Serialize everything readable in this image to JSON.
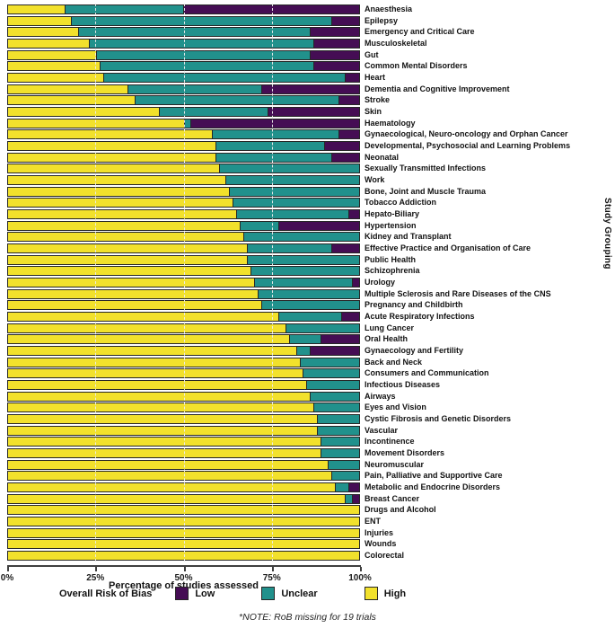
{
  "chart_data": {
    "type": "bar",
    "orientation": "horizontal",
    "stacked": true,
    "xlabel": "Percentage of studies assessed",
    "ylabel": "Study Grouping",
    "xlim": [
      0,
      100
    ],
    "x_ticks": [
      "0%",
      "25%",
      "50%",
      "75%",
      "100%"
    ],
    "grid": "dashed vertical at 25/50/75",
    "legend": {
      "title": "Overall Risk of Bias",
      "position": "bottom",
      "entries": [
        {
          "label": "Low",
          "color": "#450d54"
        },
        {
          "label": "Unclear",
          "color": "#21918c"
        },
        {
          "label": "High",
          "color": "#f2e12c"
        }
      ]
    },
    "note": "*NOTE: RoB missing for 19 trials",
    "segment_order": [
      "High",
      "Unclear",
      "Low"
    ],
    "rows": [
      {
        "label": "Anaesthesia",
        "high": 16,
        "unclear": 34,
        "low": 50
      },
      {
        "label": "Epilepsy",
        "high": 18,
        "unclear": 74,
        "low": 8
      },
      {
        "label": "Emergency and Critical Care",
        "high": 20,
        "unclear": 66,
        "low": 14
      },
      {
        "label": "Musculoskeletal",
        "high": 23,
        "unclear": 64,
        "low": 13
      },
      {
        "label": "Gut",
        "high": 25,
        "unclear": 61,
        "low": 14
      },
      {
        "label": "Common Mental Disorders",
        "high": 26,
        "unclear": 61,
        "low": 13
      },
      {
        "label": "Heart",
        "high": 27,
        "unclear": 69,
        "low": 4
      },
      {
        "label": "Dementia and Cognitive Improvement",
        "high": 34,
        "unclear": 38,
        "low": 28
      },
      {
        "label": "Stroke",
        "high": 36,
        "unclear": 58,
        "low": 6
      },
      {
        "label": "Skin",
        "high": 43,
        "unclear": 31,
        "low": 26
      },
      {
        "label": "Haematology",
        "high": 50,
        "unclear": 2,
        "low": 48
      },
      {
        "label": "Gynaecological, Neuro-oncology and Orphan Cancer",
        "high": 58,
        "unclear": 36,
        "low": 6
      },
      {
        "label": "Developmental, Psychosocial and Learning Problems",
        "high": 59,
        "unclear": 31,
        "low": 10
      },
      {
        "label": "Neonatal",
        "high": 59,
        "unclear": 33,
        "low": 8
      },
      {
        "label": "Sexually Transmitted Infections",
        "high": 60,
        "unclear": 40,
        "low": 0
      },
      {
        "label": "Work",
        "high": 62,
        "unclear": 38,
        "low": 0
      },
      {
        "label": "Bone, Joint and Muscle Trauma",
        "high": 63,
        "unclear": 37,
        "low": 0
      },
      {
        "label": "Tobacco Addiction",
        "high": 64,
        "unclear": 36,
        "low": 0
      },
      {
        "label": "Hepato-Biliary",
        "high": 65,
        "unclear": 32,
        "low": 3
      },
      {
        "label": "Hypertension",
        "high": 66,
        "unclear": 11,
        "low": 23
      },
      {
        "label": "Kidney and Transplant",
        "high": 67,
        "unclear": 33,
        "low": 0
      },
      {
        "label": "Effective Practice and Organisation of Care",
        "high": 68,
        "unclear": 24,
        "low": 8
      },
      {
        "label": "Public Health",
        "high": 68,
        "unclear": 32,
        "low": 0
      },
      {
        "label": "Schizophrenia",
        "high": 69,
        "unclear": 31,
        "low": 0
      },
      {
        "label": "Urology",
        "high": 70,
        "unclear": 28,
        "low": 2
      },
      {
        "label": "Multiple Sclerosis and Rare Diseases of the CNS",
        "high": 71,
        "unclear": 29,
        "low": 0
      },
      {
        "label": "Pregnancy and Childbirth",
        "high": 72,
        "unclear": 28,
        "low": 0
      },
      {
        "label": "Acute Respiratory Infections",
        "high": 77,
        "unclear": 18,
        "low": 5
      },
      {
        "label": "Lung Cancer",
        "high": 79,
        "unclear": 21,
        "low": 0
      },
      {
        "label": "Oral Health",
        "high": 80,
        "unclear": 9,
        "low": 11
      },
      {
        "label": "Gynaecology and Fertility",
        "high": 82,
        "unclear": 4,
        "low": 14
      },
      {
        "label": "Back and Neck",
        "high": 83,
        "unclear": 17,
        "low": 0
      },
      {
        "label": "Consumers and Communication",
        "high": 84,
        "unclear": 16,
        "low": 0
      },
      {
        "label": "Infectious Diseases",
        "high": 85,
        "unclear": 15,
        "low": 0
      },
      {
        "label": "Airways",
        "high": 86,
        "unclear": 14,
        "low": 0
      },
      {
        "label": "Eyes and Vision",
        "high": 87,
        "unclear": 13,
        "low": 0
      },
      {
        "label": "Cystic Fibrosis and Genetic Disorders",
        "high": 88,
        "unclear": 12,
        "low": 0
      },
      {
        "label": "Vascular",
        "high": 88,
        "unclear": 12,
        "low": 0
      },
      {
        "label": "Incontinence",
        "high": 89,
        "unclear": 11,
        "low": 0
      },
      {
        "label": "Movement Disorders",
        "high": 89,
        "unclear": 11,
        "low": 0
      },
      {
        "label": "Neuromuscular",
        "high": 91,
        "unclear": 9,
        "low": 0
      },
      {
        "label": "Pain, Palliative and Supportive Care",
        "high": 92,
        "unclear": 8,
        "low": 0
      },
      {
        "label": "Metabolic and Endocrine Disorders",
        "high": 93,
        "unclear": 4,
        "low": 3
      },
      {
        "label": "Breast Cancer",
        "high": 96,
        "unclear": 2,
        "low": 2
      },
      {
        "label": "Drugs and Alcohol",
        "high": 100,
        "unclear": 0,
        "low": 0
      },
      {
        "label": "ENT",
        "high": 100,
        "unclear": 0,
        "low": 0
      },
      {
        "label": "Injuries",
        "high": 100,
        "unclear": 0,
        "low": 0
      },
      {
        "label": "Wounds",
        "high": 100,
        "unclear": 0,
        "low": 0
      },
      {
        "label": "Colorectal",
        "high": 100,
        "unclear": 0,
        "low": 0
      }
    ]
  }
}
